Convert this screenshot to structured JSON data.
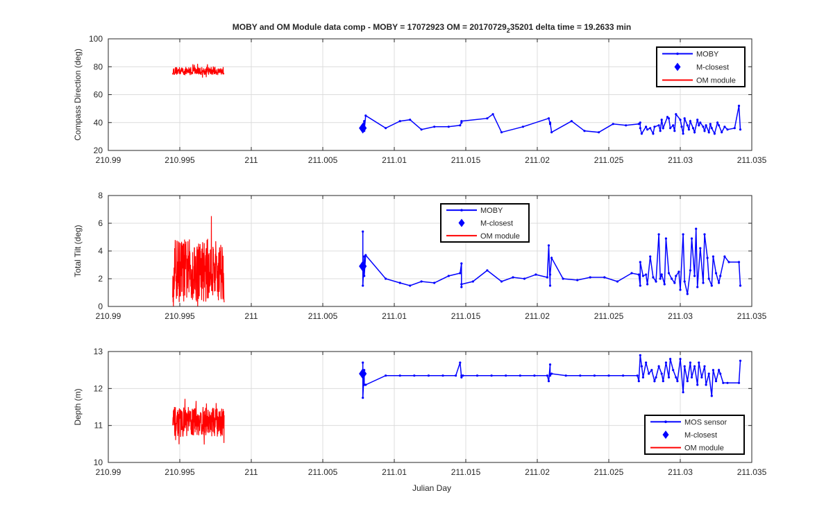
{
  "figure": {
    "title_main": "MOBY and OM Module data comp - MOBY = 17072923 OM = 20170729",
    "title_sub": "2",
    "title_tail": "35201 delta time = 19.2633 min",
    "xlabel": "Julian Day"
  },
  "chart_data": [
    {
      "type": "line",
      "ylabel": "Compass Direction (deg)",
      "xlim": [
        210.99,
        211.035
      ],
      "ylim": [
        20,
        100
      ],
      "xticks": [
        "210.99",
        "210.995",
        "211",
        "211.005",
        "211.01",
        "211.015",
        "211.02",
        "211.025",
        "211.03",
        "211.035"
      ],
      "yticks": [
        "20",
        "40",
        "60",
        "80",
        "100"
      ],
      "grid": true,
      "legend_position": "top-right",
      "legend": [
        "MOBY",
        "M-closest",
        "OM module"
      ],
      "series": [
        {
          "name": "MOBY",
          "color": "#0000ff",
          "marker": "dot",
          "x": [
            211.0078,
            211.0078,
            211.0079,
            211.0079,
            211.008,
            211.0094,
            211.0104,
            211.0111,
            211.0119,
            211.0128,
            211.0138,
            211.0146,
            211.0147,
            211.0147,
            211.0165,
            211.0169,
            211.0175,
            211.019,
            211.0208,
            211.0209,
            211.0209,
            211.021,
            211.0224,
            211.0233,
            211.0243,
            211.0253,
            211.0262,
            211.0271,
            211.0272,
            211.0272,
            211.0273,
            211.0276,
            211.0277,
            211.0279,
            211.0281,
            211.0282,
            211.0285,
            211.0286,
            211.0287,
            211.0288,
            211.0291,
            211.0292,
            211.0293,
            211.0295,
            211.0296,
            211.0297,
            211.03,
            211.0301,
            211.0302,
            211.0303,
            211.0305,
            211.0306,
            211.0307,
            211.0309,
            211.031,
            211.0312,
            211.0313,
            211.0314,
            211.0316,
            211.0317,
            211.0318,
            211.032,
            211.0321,
            211.0322,
            211.0324,
            211.0326,
            211.0327,
            211.0329,
            211.0331,
            211.0333,
            211.0338,
            211.0341,
            211.0342
          ],
          "y": [
            35,
            38,
            41,
            34,
            45,
            36,
            41,
            42,
            35,
            37,
            37,
            38,
            40,
            41,
            43,
            46,
            33,
            37,
            43,
            39,
            40,
            33,
            41,
            34,
            33,
            39,
            38,
            39,
            40,
            36,
            32,
            37,
            35,
            36,
            32,
            37,
            38,
            34,
            42,
            36,
            44,
            43,
            36,
            38,
            34,
            46,
            42,
            37,
            32,
            43,
            38,
            35,
            41,
            36,
            33,
            42,
            38,
            40,
            37,
            34,
            38,
            33,
            39,
            36,
            32,
            40,
            38,
            33,
            37,
            35,
            36,
            52,
            35
          ]
        },
        {
          "name": "M-closest",
          "color": "#0000ff",
          "marker": "diamond",
          "x": [
            211.0078
          ],
          "y": [
            36
          ]
        },
        {
          "name": "OM module",
          "color": "#ff0000",
          "x_range": [
            210.9945,
            210.9981
          ],
          "y_center": 77,
          "y_amplitude": 3,
          "samples": 220
        }
      ]
    },
    {
      "type": "line",
      "ylabel": "Total Tilt (deg)",
      "xlim": [
        210.99,
        211.035
      ],
      "ylim": [
        0,
        8
      ],
      "xticks": [
        "210.99",
        "210.995",
        "211",
        "211.005",
        "211.01",
        "211.015",
        "211.02",
        "211.025",
        "211.03",
        "211.035"
      ],
      "yticks": [
        "0",
        "2",
        "4",
        "6",
        "8"
      ],
      "grid": true,
      "legend_position": "top-center",
      "legend": [
        "MOBY",
        "M-closest",
        "OM module"
      ],
      "series": [
        {
          "name": "MOBY",
          "color": "#0000ff",
          "marker": "dot",
          "x": [
            211.0078,
            211.0078,
            211.0079,
            211.0079,
            211.008,
            211.0094,
            211.0104,
            211.0111,
            211.0119,
            211.0128,
            211.0138,
            211.0146,
            211.0147,
            211.0147,
            211.0147,
            211.0155,
            211.0165,
            211.0175,
            211.0183,
            211.0191,
            211.0199,
            211.0207,
            211.0208,
            211.0209,
            211.0209,
            211.021,
            211.0218,
            211.0228,
            211.0237,
            211.0247,
            211.0256,
            211.0266,
            211.0271,
            211.0272,
            211.0272,
            211.0274,
            211.0276,
            211.0277,
            211.0279,
            211.0281,
            211.0283,
            211.0285,
            211.0286,
            211.0287,
            211.0289,
            211.029,
            211.0292,
            211.0294,
            211.0296,
            211.0297,
            211.0299,
            211.03,
            211.0302,
            211.0303,
            211.0305,
            211.0307,
            211.0308,
            211.031,
            211.0311,
            211.0312,
            211.0314,
            211.0316,
            211.0317,
            211.0319,
            211.032,
            211.0322,
            211.0323,
            211.0325,
            211.0327,
            211.0328,
            211.0331,
            211.0334,
            211.0341,
            211.0342
          ],
          "y": [
            5.4,
            1.5,
            3.6,
            2.2,
            3.7,
            2,
            1.7,
            1.5,
            1.8,
            1.7,
            2.2,
            2.4,
            3.1,
            1.4,
            1.6,
            1.8,
            2.6,
            1.8,
            2.1,
            2,
            2.3,
            2.1,
            4.4,
            1.5,
            2.3,
            3.5,
            2,
            1.9,
            2.1,
            2.1,
            1.8,
            2.4,
            2.3,
            1.5,
            3.2,
            2.2,
            2.3,
            1.6,
            3.6,
            2.1,
            1.8,
            5.2,
            2,
            2.3,
            1.6,
            4.9,
            2.4,
            2,
            1.7,
            2.2,
            2.5,
            1.2,
            5.2,
            1.8,
            0.9,
            2.6,
            4.9,
            2.2,
            5.6,
            1.4,
            4.2,
            1.7,
            5.2,
            3.5,
            2,
            1.5,
            3.6,
            2.4,
            1.7,
            2.2,
            3.6,
            3.2,
            3.2,
            1.5
          ]
        },
        {
          "name": "M-closest",
          "color": "#0000ff",
          "marker": "diamond",
          "x": [
            211.0078
          ],
          "y": [
            2.9
          ]
        },
        {
          "name": "OM module",
          "color": "#ff0000",
          "x_range": [
            210.9945,
            210.9981
          ],
          "y_center": 2.6,
          "y_amplitude": 2.3,
          "y_min": 0,
          "y_max": 7.7,
          "samples": 260
        }
      ]
    },
    {
      "type": "line",
      "ylabel": "Depth (m)",
      "xlim": [
        210.99,
        211.035
      ],
      "ylim": [
        10,
        13
      ],
      "xticks": [
        "210.99",
        "210.995",
        "211",
        "211.005",
        "211.01",
        "211.015",
        "211.02",
        "211.025",
        "211.03",
        "211.035"
      ],
      "yticks": [
        "10",
        "11",
        "12",
        "13"
      ],
      "grid": true,
      "legend_position": "bottom-right",
      "legend": [
        "MOS sensor",
        "M-closest",
        "OM module"
      ],
      "series": [
        {
          "name": "MOS sensor",
          "color": "#0000ff",
          "marker": "dot",
          "x": [
            211.0078,
            211.0078,
            211.0079,
            211.0079,
            211.008,
            211.0094,
            211.0104,
            211.0114,
            211.0124,
            211.0134,
            211.0143,
            211.0146,
            211.0147,
            211.0147,
            211.0148,
            211.0158,
            211.0168,
            211.0178,
            211.0188,
            211.0198,
            211.0207,
            211.0208,
            211.0209,
            211.0209,
            211.021,
            211.022,
            211.023,
            211.024,
            211.025,
            211.026,
            211.027,
            211.0271,
            211.0272,
            211.0273,
            211.0274,
            211.0276,
            211.0278,
            211.028,
            211.0282,
            211.0283,
            211.0285,
            211.0287,
            211.0288,
            211.029,
            211.0292,
            211.0293,
            211.0295,
            211.0297,
            211.0298,
            211.03,
            211.0302,
            211.0303,
            211.0305,
            211.0307,
            211.0308,
            211.031,
            211.0312,
            211.0313,
            211.0315,
            211.0317,
            211.0318,
            211.032,
            211.0322,
            211.0323,
            211.0325,
            211.0327,
            211.0328,
            211.033,
            211.0333,
            211.0341,
            211.0342
          ],
          "y": [
            12.7,
            11.75,
            12.5,
            12.1,
            12.1,
            12.35,
            12.35,
            12.35,
            12.35,
            12.35,
            12.35,
            12.7,
            12.3,
            12.35,
            12.35,
            12.35,
            12.35,
            12.35,
            12.35,
            12.35,
            12.35,
            12.2,
            12.65,
            12.35,
            12.4,
            12.35,
            12.35,
            12.35,
            12.35,
            12.35,
            12.35,
            12.2,
            12.9,
            12.6,
            12.3,
            12.7,
            12.4,
            12.5,
            12.2,
            12.3,
            12.6,
            12.4,
            12.2,
            12.7,
            12.3,
            12.8,
            12.5,
            12.3,
            12.2,
            12.8,
            11.9,
            12.6,
            12.2,
            12.7,
            12.3,
            12.6,
            12.1,
            12.7,
            12.3,
            12.6,
            12.1,
            12.4,
            11.8,
            12.5,
            12.2,
            12.5,
            12.4,
            12.15,
            12.15,
            12.15,
            12.75
          ]
        },
        {
          "name": "M-closest",
          "color": "#0000ff",
          "marker": "diamond",
          "x": [
            211.0078
          ],
          "y": [
            12.4
          ]
        },
        {
          "name": "OM module",
          "color": "#ff0000",
          "x_range": [
            210.9945,
            210.9981
          ],
          "y_center": 11.1,
          "y_amplitude": 0.4,
          "y_min": 10.35,
          "y_max": 11.8,
          "samples": 260
        }
      ]
    }
  ]
}
